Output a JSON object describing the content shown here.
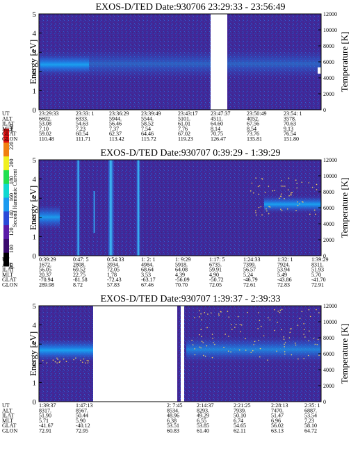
{
  "colorbar": {
    "label": "Second Harmonic Current",
    "ticks": [
      "80",
      "100",
      "120",
      "140",
      "160",
      "180",
      "200",
      "220",
      "240"
    ],
    "min": 80,
    "max": 240,
    "colors": [
      "#000000",
      "#3a0a6e",
      "#5a1aa8",
      "#2a4ad8",
      "#1a9af0",
      "#10d8d0",
      "#20e050",
      "#f0f020",
      "#f08010",
      "#e01010"
    ]
  },
  "chart_data": [
    {
      "type": "heatmap",
      "title": "EXOS-D/TED   Date:930706  23:29:33 - 23:56:49",
      "ylabel": "Energy [eV]",
      "y2label": "Temperature [K]",
      "ylim": [
        0,
        5
      ],
      "y2lim": [
        0,
        12000
      ],
      "yticks": [
        "0",
        "1",
        "2",
        "3",
        "4",
        "5"
      ],
      "y2ticks": [
        "0",
        "2000",
        "4000",
        "6000",
        "8000",
        "10000",
        "12000"
      ],
      "data_gaps": [
        {
          "from": "23:43:17",
          "to": "23:47:37"
        }
      ],
      "ephemeris": {
        "labels": [
          "UT",
          "ALT",
          "ILAT",
          "MLT",
          "GLAT",
          "GLON"
        ],
        "columns": [
          [
            "23:29:33",
            "6692.",
            "53.08",
            "7.10",
            "59.02",
            "110.48"
          ],
          [
            "23:33: 1",
            "6333.",
            "54.63",
            "7.23",
            "60.54",
            "111.71"
          ],
          [
            "23:36:29",
            "5944.",
            "56.46",
            "7.37",
            "62.37",
            "113.42"
          ],
          [
            "23:39:49",
            "5544.",
            "58.52",
            "7.54",
            "64.46",
            "115.72"
          ],
          [
            "23:43:17",
            "5101.",
            "61.01",
            "7.76",
            "67.02",
            "119.23"
          ],
          [
            "23:47:37",
            "4511.",
            "64.60",
            "8.14",
            "70.75",
            "126.47"
          ],
          [
            "23:50:49",
            "4052.",
            "67.56",
            "8.54",
            "73.76",
            "135.81"
          ],
          [
            "23:54: 1",
            "3578.",
            "70.63",
            "9.13",
            "76.54",
            "151.80"
          ]
        ]
      }
    },
    {
      "type": "heatmap",
      "title": "EXOS-D/TED   Date:930707  0:39:29 - 1:39:29",
      "ylabel": "Energy [eV]",
      "y2label": "Temperature [K]",
      "ylim": [
        0,
        5
      ],
      "y2lim": [
        0,
        12000
      ],
      "yticks": [
        "0",
        "1",
        "2",
        "3",
        "4",
        "5"
      ],
      "y2ticks": [
        "0",
        "2000",
        "4000",
        "6000",
        "8000",
        "10000",
        "12000"
      ],
      "data_gaps": [],
      "ephemeris": {
        "labels": [
          "UT",
          "ALT",
          "ILAT",
          "MLT",
          "GLAT",
          "GLON"
        ],
        "columns": [
          [
            "0:39:29",
            "1672.",
            "56.05",
            "20.37",
            "-70.94",
            "289.98"
          ],
          [
            "0:47: 5",
            "2808.",
            "69.52",
            "22.75",
            "-81.58",
            "8.72"
          ],
          [
            "0:54:33",
            "3934.",
            "72.05",
            "1.78",
            "-72.43",
            "57.83"
          ],
          [
            "1: 2: 1",
            "4984.",
            "68.64",
            "3.53",
            "-63.17",
            "67.46"
          ],
          [
            "1: 9:29",
            "5918.",
            "64.08",
            "4.39",
            "-56.09",
            "70.70"
          ],
          [
            "1:17: 5",
            "6735.",
            "59.91",
            "4.90",
            "-50.72",
            "72.05"
          ],
          [
            "1:24:33",
            "7399.",
            "56.57",
            "5.24",
            "-46.79",
            "72.61"
          ],
          [
            "1:32: 1",
            "7924.",
            "53.94",
            "5.49",
            "-43.86",
            "72.83"
          ],
          [
            "1:39:29",
            "8311.",
            "51.93",
            "5.70",
            "-41.70",
            "72.91"
          ]
        ]
      }
    },
    {
      "type": "heatmap",
      "title": "EXOS-D/TED   Date:930707  1:39:37 - 2:39:33",
      "ylabel": "Energy [eV]",
      "y2label": "Temperature [K]",
      "ylim": [
        0,
        5
      ],
      "y2lim": [
        0,
        12000
      ],
      "yticks": [
        "0",
        "1",
        "2",
        "3",
        "4",
        "5"
      ],
      "y2ticks": [
        "0",
        "2000",
        "4000",
        "6000",
        "8000",
        "10000",
        "12000"
      ],
      "data_gaps": [
        {
          "from": "1:47:13",
          "to": "2: 7:45"
        }
      ],
      "ephemeris": {
        "labels": [
          "UT",
          "ALT",
          "ILAT",
          "MLT",
          "GLAT",
          "GLON"
        ],
        "columns": [
          [
            "1:39:37",
            "8317.",
            "51.90",
            "5.71",
            "-41.67",
            "72.91"
          ],
          [
            "1:47:13",
            "8567.",
            "50.44",
            "5.90",
            "-40.12",
            "72.95"
          ],
          [
            "2: 7:45",
            "8534.",
            "48.96",
            "6.38",
            "53.51",
            "60.83"
          ],
          [
            "2:14:37",
            "8293.",
            "49.29",
            "6.55",
            "53.85",
            "61.40"
          ],
          [
            "2:21:25",
            "7939.",
            "50.10",
            "6.74",
            "54.65",
            "62.11"
          ],
          [
            "2:28:13",
            "7470.",
            "51.47",
            "6.96",
            "56.02",
            "63.13"
          ],
          [
            "2:35: 1",
            "6887.",
            "53.54",
            "7.23",
            "58.10",
            "64.72"
          ]
        ]
      }
    }
  ]
}
